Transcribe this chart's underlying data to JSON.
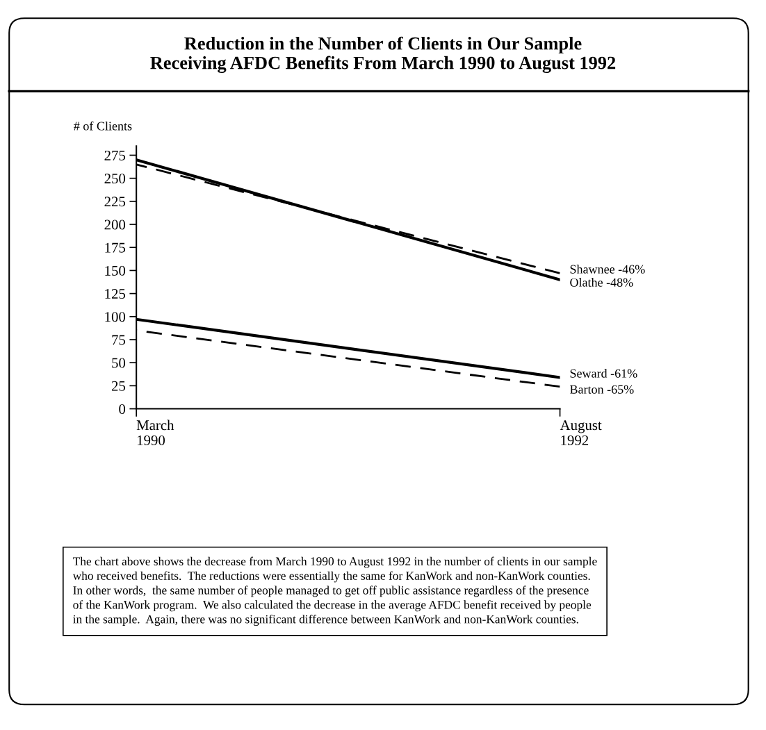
{
  "chart_data": {
    "type": "line",
    "title": "Reduction in the Number of Clients in Our Sample\nReceiving AFDC Benefits From March 1990 to August 1992",
    "ylabel": "# of Clients",
    "categories": [
      "March\n1990",
      "August\n1992"
    ],
    "series": [
      {
        "name": "Olathe -48%",
        "color": "#000000",
        "line_style": "solid",
        "values": [
          270,
          140
        ]
      },
      {
        "name": "Shawnee -46%",
        "color": "#000000",
        "line_style": "dashed",
        "values": [
          265,
          147
        ]
      },
      {
        "name": "Seward -61%",
        "color": "#000000",
        "line_style": "solid",
        "values": [
          97,
          34
        ]
      },
      {
        "name": "Barton -65%",
        "color": "#000000",
        "line_style": "dashed",
        "values": [
          85,
          24
        ]
      }
    ],
    "ylim": [
      0,
      285
    ],
    "yticks": [
      0,
      25,
      50,
      75,
      100,
      125,
      150,
      175,
      200,
      225,
      250,
      275
    ],
    "grid": false,
    "legend": false,
    "marker": "none",
    "annotations": [
      "The chart above shows the decrease from March 1990 to August 1992 in the number of clients in our sample\nwho received benefits.  The reductions were essentially the same for KanWork and non-KanWork counties.\nIn other words,  the same number of people managed to get off public assistance regardless of the presence\nof the KanWork program.  We also calculated the decrease in the average AFDC benefit received by people\nin the sample.  Again, there was no significant difference between KanWork and non-KanWork counties."
    ]
  }
}
